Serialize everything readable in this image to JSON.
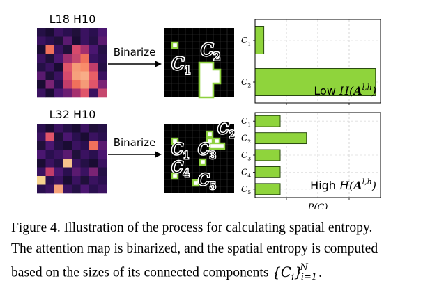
{
  "panels": [
    {
      "map_label": "L18 H10",
      "arrow_label": "Binarize",
      "heat_colors": [
        [
          "#251046",
          "#1a0c33",
          "#3a1260",
          "#2a0f4f",
          "#20103a",
          "#3a1260",
          "#2a0f4f",
          "#4a1670"
        ],
        [
          "#3a1260",
          "#2a0f4f",
          "#20103a",
          "#5a1a70",
          "#1a0c33",
          "#3a1260",
          "#251046",
          "#5a1a70"
        ],
        [
          "#1a0c33",
          "#f0705c",
          "#3a1260",
          "#20103a",
          "#d64a6c",
          "#a5306e",
          "#4a1670",
          "#251046"
        ],
        [
          "#3a1260",
          "#20103a",
          "#4a1670",
          "#9e2e6f",
          "#c6486e",
          "#f0705c",
          "#3a1260",
          "#2a0f4f"
        ],
        [
          "#251046",
          "#3a1260",
          "#1a0c33",
          "#e0556a",
          "#f59a77",
          "#f98c6a",
          "#c23d6a",
          "#251046"
        ],
        [
          "#5a1a70",
          "#20103a",
          "#3a1260",
          "#d64a6c",
          "#f6a07c",
          "#f8ad87",
          "#e85f66",
          "#3a1260"
        ],
        [
          "#1a0c33",
          "#7a2374",
          "#2a0f4f",
          "#c23d6a",
          "#f0705c",
          "#f59a77",
          "#e0556a",
          "#7a2374"
        ],
        [
          "#3a1260",
          "#1a0c33",
          "#4a1670",
          "#6a1d72",
          "#a5306e",
          "#e0556a",
          "#3a1260",
          "#c6486e"
        ]
      ],
      "components": [
        {
          "label": "C1",
          "base": "C",
          "sub": "1"
        },
        {
          "label": "C2",
          "base": "C",
          "sub": "2"
        }
      ],
      "bars": {
        "categories": [
          "C1",
          "C2"
        ],
        "values": [
          0.07,
          0.96
        ],
        "annotation_prefix": "Low ",
        "annotation_math": "H(A^{l,h})",
        "xlabel": ""
      }
    },
    {
      "map_label": "L32 H10",
      "arrow_label": "Binarize",
      "heat_colors": [
        [
          "#2a0f4f",
          "#1a0c33",
          "#3a1260",
          "#251046",
          "#1a0c33",
          "#3a1260",
          "#20103a",
          "#251046"
        ],
        [
          "#3a1260",
          "#e0556a",
          "#20103a",
          "#4a1670",
          "#2a0f4f",
          "#1a0c33",
          "#3a1260",
          "#2a0f4f"
        ],
        [
          "#20103a",
          "#4a1670",
          "#251046",
          "#1a0c33",
          "#3a1260",
          "#2a0f4f",
          "#f0705c",
          "#5a1a70"
        ],
        [
          "#4a1670",
          "#2a0f4f",
          "#3a1260",
          "#5a1a70",
          "#20103a",
          "#3a1260",
          "#2a0f4f",
          "#4a1670"
        ],
        [
          "#1a0c33",
          "#3a1260",
          "#251046",
          "#f6c28c",
          "#3a1260",
          "#251046",
          "#1a0c33",
          "#3a1260"
        ],
        [
          "#3a1260",
          "#c23d6a",
          "#4a1670",
          "#2a0f4f",
          "#5a1a70",
          "#3a1260",
          "#7a2374",
          "#251046"
        ],
        [
          "#f6d38f",
          "#2a0f4f",
          "#3a1260",
          "#1a0c33",
          "#3a1260",
          "#20103a",
          "#3a1260",
          "#2a0f4f"
        ],
        [
          "#2a0f4f",
          "#3a1260",
          "#f5a17a",
          "#3a1260",
          "#251046",
          "#4a1670",
          "#2a0f4f",
          "#3a1260"
        ]
      ],
      "components": [
        {
          "label": "C1",
          "base": "C",
          "sub": "1"
        },
        {
          "label": "C2",
          "base": "C",
          "sub": "2"
        },
        {
          "label": "C3",
          "base": "C",
          "sub": "3"
        },
        {
          "label": "C4",
          "base": "C",
          "sub": "4"
        },
        {
          "label": "C5",
          "base": "C",
          "sub": "5"
        }
      ],
      "bars": {
        "categories": [
          "C1",
          "C2",
          "C3",
          "C4",
          "C5"
        ],
        "values": [
          0.2,
          0.41,
          0.2,
          0.2,
          0.2
        ],
        "annotation_prefix": "High ",
        "annotation_math": "H(A^{l,h})",
        "xlabel": "P(C)"
      }
    }
  ],
  "chart_data": [
    {
      "type": "bar",
      "orientation": "horizontal",
      "categories": [
        "C1",
        "C2"
      ],
      "values": [
        0.07,
        0.96
      ],
      "xlim": [
        0,
        1
      ],
      "grid": true,
      "annotation": "Low H(A^{l,h})",
      "bar_color": "#8fd43c"
    },
    {
      "type": "bar",
      "orientation": "horizontal",
      "categories": [
        "C1",
        "C2",
        "C3",
        "C4",
        "C5"
      ],
      "values": [
        0.2,
        0.41,
        0.2,
        0.2,
        0.2
      ],
      "xlim": [
        0,
        1
      ],
      "grid": true,
      "xlabel": "P(C)",
      "annotation": "High H(A^{l,h})",
      "bar_color": "#8fd43c"
    }
  ],
  "caption": {
    "line1": "Figure 4. Illustration of the process for calculating spatial entropy.",
    "line2": "The attention map is binarized, and the spatial entropy is computed",
    "line3_text": "based on the sizes of its connected components ",
    "line3_math": "{C_i}_{i=1}^N",
    "line3_end": "."
  },
  "colors": {
    "bar_fill": "#8fd43c",
    "bar_edge": "#2a4a10",
    "component_outline": "#8ed13f",
    "binary_bg": "#000000",
    "binary_grid": "#3a3a3a"
  }
}
